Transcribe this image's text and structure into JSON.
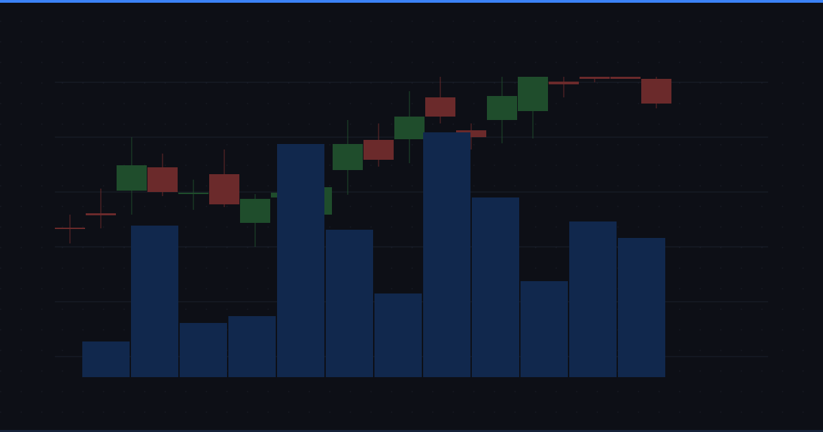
{
  "chart_data": [
    {
      "type": "candlestick",
      "open": [
        188,
        209,
        242,
        276,
        237,
        266,
        195,
        232,
        207,
        272,
        316,
        317,
        378,
        330,
        345,
        358,
        401,
        408,
        408,
        405
      ],
      "close": [
        187,
        206,
        279,
        240,
        239,
        222,
        230,
        239,
        247,
        310,
        287,
        350,
        350,
        320,
        380,
        408,
        397,
        405,
        405,
        369
      ],
      "high": [
        207,
        245,
        320,
        296,
        258,
        302,
        237,
        245,
        255,
        345,
        340,
        387,
        408,
        340,
        408,
        408,
        408,
        408,
        408,
        408
      ],
      "low": [
        165,
        187,
        207,
        234,
        214,
        218,
        160,
        228,
        202,
        236,
        277,
        282,
        340,
        302,
        311,
        318,
        378,
        400,
        406,
        362
      ],
      "up_color": "#1f4d2c",
      "down_color": "#6b2a2b",
      "ylim": [
        -30,
        420
      ],
      "yticks": [
        0,
        80,
        160,
        240,
        320,
        400
      ],
      "grid": true
    },
    {
      "type": "bar",
      "values": [
        52,
        221,
        79,
        89,
        340,
        215,
        122,
        357,
        262,
        140,
        227,
        203
      ],
      "color": "#11284d",
      "ylim": [
        0,
        400
      ]
    }
  ]
}
